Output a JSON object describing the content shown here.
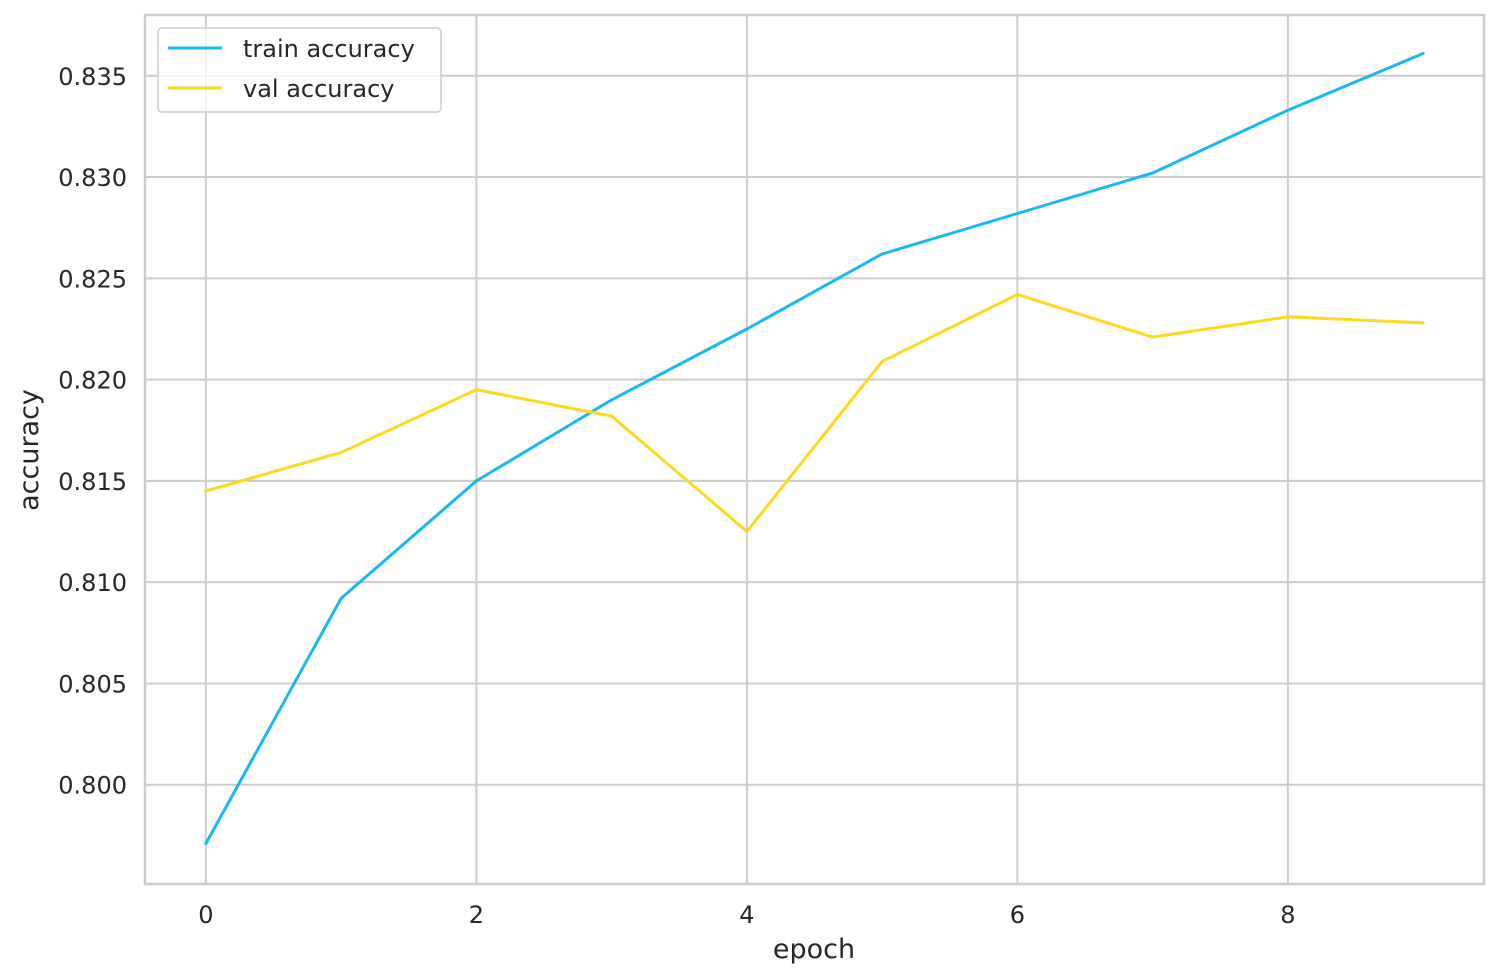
{
  "chart_data": {
    "type": "line",
    "title": "",
    "xlabel": "epoch",
    "ylabel": "accuracy",
    "x": [
      0,
      1,
      2,
      3,
      4,
      5,
      6,
      7,
      8,
      9
    ],
    "xlim": [
      -0.45,
      9.45
    ],
    "ylim": [
      0.7951,
      0.838
    ],
    "xticks": [
      0,
      2,
      4,
      6,
      8
    ],
    "xtick_labels": [
      "0",
      "2",
      "4",
      "6",
      "8"
    ],
    "yticks": [
      0.8,
      0.805,
      0.81,
      0.815,
      0.82,
      0.825,
      0.83,
      0.835
    ],
    "ytick_labels": [
      "0.800",
      "0.805",
      "0.810",
      "0.815",
      "0.820",
      "0.825",
      "0.830",
      "0.835"
    ],
    "grid": true,
    "legend_position": "top-left",
    "series": [
      {
        "name": "train accuracy",
        "color": "#1ab8f0",
        "values": [
          0.7971,
          0.8092,
          0.815,
          0.819,
          0.8225,
          0.8262,
          0.8282,
          0.8302,
          0.8333,
          0.8361
        ]
      },
      {
        "name": "val accuracy",
        "color": "#fcd91c",
        "values": [
          0.8145,
          0.8164,
          0.8195,
          0.8182,
          0.8125,
          0.8209,
          0.8242,
          0.8221,
          0.8231,
          0.8228
        ]
      }
    ]
  }
}
